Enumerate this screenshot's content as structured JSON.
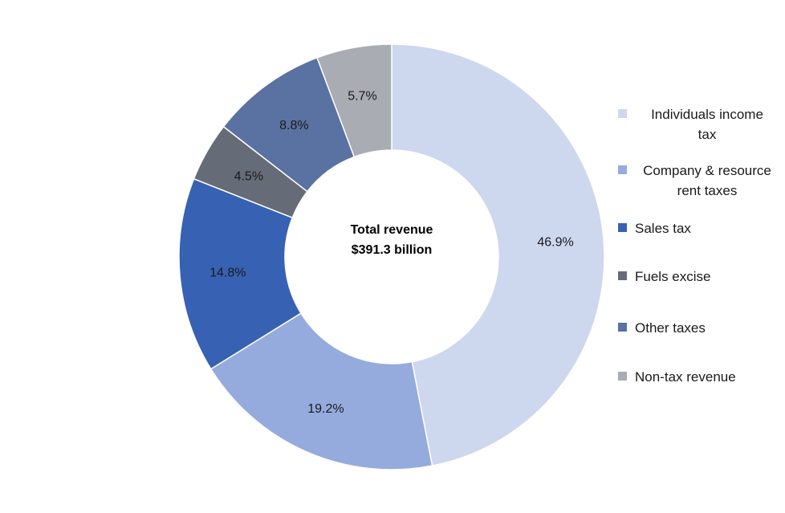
{
  "chart_data": {
    "type": "pie",
    "subtype": "donut",
    "center_label": {
      "line1": "Total revenue",
      "line2": "$391.3 billion"
    },
    "slices": [
      {
        "name": "Individuals income tax",
        "value": 46.9,
        "label": "46.9%",
        "color": "#cdd8ef"
      },
      {
        "name": "Company & resource rent taxes",
        "value": 19.2,
        "label": "19.2%",
        "color": "#95abdd"
      },
      {
        "name": "Sales tax",
        "value": 14.8,
        "label": "14.8%",
        "color": "#3762b3"
      },
      {
        "name": "Fuels excise",
        "value": 4.5,
        "label": "4.5%",
        "color": "#666c77"
      },
      {
        "name": "Other taxes",
        "value": 8.8,
        "label": "8.8%",
        "color": "#5a72a1"
      },
      {
        "name": "Non-tax revenue",
        "value": 5.7,
        "label": "5.7%",
        "color": "#a9acb3"
      }
    ],
    "legend": {
      "placement": "right",
      "items": [
        {
          "lines": [
            "Individuals income",
            "tax"
          ],
          "color": "#cdd8ef"
        },
        {
          "lines": [
            "Company & resource",
            "rent taxes"
          ],
          "color": "#95abdd"
        },
        {
          "lines": [
            "Sales tax"
          ],
          "color": "#3762b3"
        },
        {
          "lines": [
            "Fuels excise"
          ],
          "color": "#666c77"
        },
        {
          "lines": [
            "Other taxes"
          ],
          "color": "#5a72a1"
        },
        {
          "lines": [
            "Non-tax revenue"
          ],
          "color": "#a9acb3"
        }
      ]
    }
  }
}
